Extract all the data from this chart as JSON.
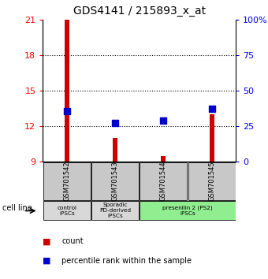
{
  "title": "GDS4141 / 215893_x_at",
  "samples": [
    "GSM701542",
    "GSM701543",
    "GSM701544",
    "GSM701545"
  ],
  "count_values": [
    21.0,
    11.0,
    9.5,
    13.0
  ],
  "count_base": 9.0,
  "percentile_values": [
    13.3,
    12.3,
    12.5,
    13.5
  ],
  "ylim_left": [
    9,
    21
  ],
  "ylim_right": [
    0,
    100
  ],
  "yticks_left": [
    9,
    12,
    15,
    18,
    21
  ],
  "yticks_right": [
    0,
    25,
    50,
    75,
    100
  ],
  "ytick_labels_right": [
    "0",
    "25",
    "50",
    "75",
    "100%"
  ],
  "groups": [
    {
      "label": "control\niPSCs",
      "start": 0,
      "end": 1,
      "color": "#d8d8d8"
    },
    {
      "label": "Sporadic\nPD-derived\niPSCs",
      "start": 1,
      "end": 2,
      "color": "#d8d8d8"
    },
    {
      "label": "presenilin 2 (PS2)\niPSCs",
      "start": 2,
      "end": 4,
      "color": "#90ee90"
    }
  ],
  "bar_color": "#cc0000",
  "dot_color": "#0000cc",
  "bar_width": 0.1,
  "dot_size": 40,
  "cell_line_label": "cell line",
  "legend_count": "count",
  "legend_percentile": "percentile rank within the sample",
  "sample_box_color": "#c8c8c8",
  "grid_ticks": [
    12,
    15,
    18
  ]
}
